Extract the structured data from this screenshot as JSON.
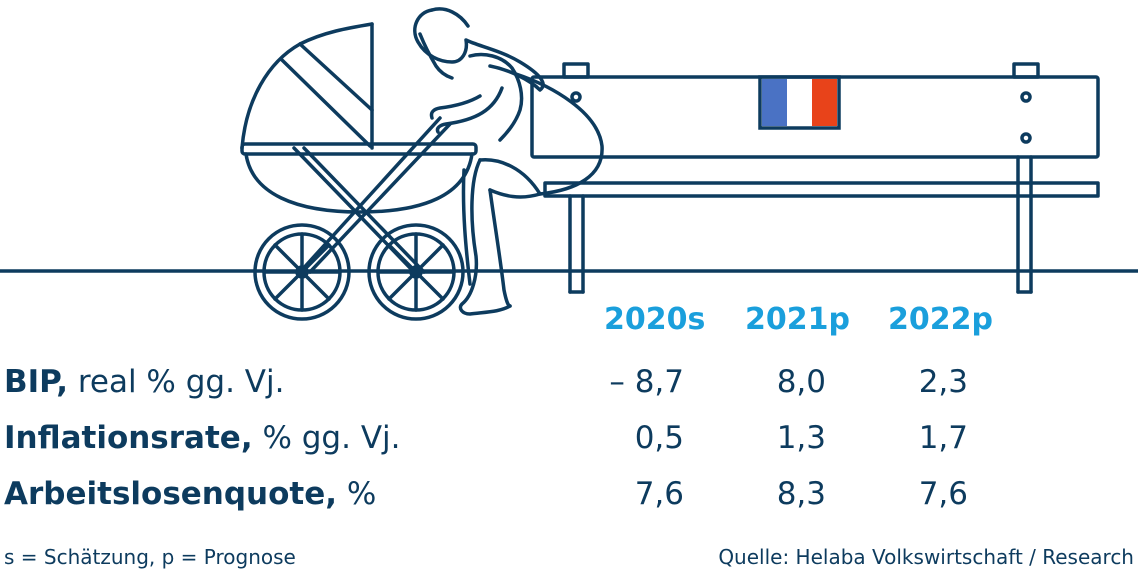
{
  "columns": [
    "2020s",
    "2021p",
    "2022p"
  ],
  "rows": [
    {
      "label_bold": "BIP,",
      "label_rest": " real % gg. Vj.",
      "values": [
        "– 8,7",
        "8,0",
        "2,3"
      ]
    },
    {
      "label_bold": "Inflationsrate,",
      "label_rest": " % gg. Vj.",
      "values": [
        "0,5",
        "1,3",
        "1,7"
      ]
    },
    {
      "label_bold": "Arbeitslosenquote,",
      "label_rest": " %",
      "values": [
        "7,6",
        "8,3",
        "7,6"
      ]
    }
  ],
  "footnote_left": "s = Schätzung, p = Prognose",
  "footnote_right": "Quelle: Helaba Volkswirtschaft / Research",
  "colors": {
    "navy": "#0d3b5e",
    "accent_blue": "#1a9fdc",
    "flag_blue": "#4a72c4",
    "flag_white": "#ffffff",
    "flag_red": "#e8431a"
  },
  "icons": [
    "woman-with-pram-illustration",
    "bench-illustration",
    "french-flag-icon"
  ]
}
